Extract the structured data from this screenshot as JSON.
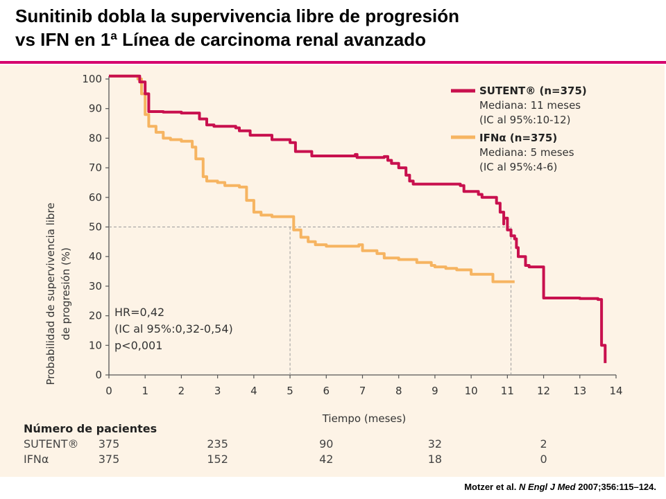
{
  "slide": {
    "title_line1": "Sunitinib dobla la supervivencia libre de progresión",
    "title_line2": "vs IFN en 1ª Línea de carcinoma renal avanzado",
    "accent_color": "#d6006e",
    "panel_color": "#fdf3e6"
  },
  "chart_data": {
    "type": "line",
    "xlabel": "Tiempo (meses)",
    "ylabel_line1": "Probabilidad de supervivencia libre",
    "ylabel_line2": "de progresión (%)",
    "xlim": [
      0,
      14
    ],
    "ylim": [
      0,
      100
    ],
    "x_ticks": [
      0,
      1,
      2,
      3,
      4,
      5,
      6,
      7,
      8,
      9,
      10,
      11,
      12,
      13,
      14
    ],
    "y_ticks": [
      0,
      10,
      20,
      30,
      40,
      50,
      60,
      70,
      80,
      90,
      100
    ],
    "grid": false,
    "median_guide": {
      "y": 50,
      "x_values": [
        5,
        11.1
      ]
    },
    "series": [
      {
        "name": "SUTENT® (n=375)",
        "color": "#c8104e",
        "median_text": "Mediana: 11 meses",
        "ci_text": "(IC al 95%:10-12)",
        "x": [
          0,
          0.8,
          0.85,
          1.0,
          1.1,
          1.5,
          2.0,
          2.5,
          2.7,
          2.9,
          3.5,
          3.6,
          3.9,
          4.5,
          5.0,
          5.15,
          5.4,
          5.6,
          6.0,
          6.8,
          6.85,
          7.1,
          7.6,
          7.7,
          7.8,
          8.0,
          8.2,
          8.3,
          8.4,
          9.5,
          9.7,
          9.8,
          10.2,
          10.3,
          10.4,
          10.6,
          10.7,
          10.8,
          10.9,
          10.9,
          11.0,
          11.1,
          11.2,
          11.25,
          11.3,
          11.5,
          11.6,
          11.7,
          12.0,
          13.0,
          13.5,
          13.6,
          13.7
        ],
        "y": [
          101,
          101,
          99,
          95,
          89,
          88.8,
          88.5,
          86.5,
          84.5,
          84,
          83.5,
          82.5,
          81,
          79.5,
          78.5,
          75.5,
          75.5,
          74,
          74,
          74.5,
          73.5,
          73.5,
          73.8,
          72.5,
          71.5,
          70,
          67.5,
          65.5,
          64.5,
          64.5,
          64,
          62,
          61,
          60,
          60,
          60,
          58,
          55,
          51,
          53,
          49,
          47,
          46,
          43,
          40,
          37,
          36.5,
          36.5,
          26,
          25.8,
          25.5,
          10,
          4
        ]
      },
      {
        "name": "IFNα (n=375)",
        "color": "#f6b461",
        "median_text": "Mediana: 5 meses",
        "ci_text": "(IC al 95%:4-6)",
        "x": [
          0,
          0.8,
          0.9,
          1.0,
          1.1,
          1.3,
          1.5,
          1.7,
          2.0,
          2.3,
          2.4,
          2.6,
          2.7,
          3.0,
          3.2,
          3.4,
          3.6,
          3.8,
          4.0,
          4.2,
          4.5,
          5.0,
          5.1,
          5.3,
          5.5,
          5.7,
          6.0,
          6.5,
          6.9,
          7.0,
          7.4,
          7.6,
          8.0,
          8.5,
          8.9,
          9.0,
          9.3,
          9.6,
          10.0,
          10.3,
          10.5,
          10.6,
          11.2
        ],
        "y": [
          101,
          100,
          95,
          88,
          84,
          82,
          80,
          79.5,
          79,
          77,
          73,
          67,
          65.5,
          65,
          64,
          64,
          63.5,
          59,
          55,
          54,
          53.5,
          53.5,
          49,
          46.5,
          45,
          44,
          43.5,
          43.5,
          44,
          42,
          41,
          39.5,
          39,
          38,
          37,
          36.5,
          36,
          35.5,
          34,
          34,
          34,
          31.5,
          31.5
        ]
      }
    ],
    "annotation": {
      "line1": "HR=0,42",
      "line2": "(IC al 95%:0,32-0,54)",
      "line3": "p<0,001"
    },
    "risk_table": {
      "header": "Número de pacientes",
      "times": [
        0,
        3,
        6,
        9,
        12
      ],
      "rows": [
        {
          "label": "SUTENT®",
          "values": [
            "375",
            "235",
            "90",
            "32",
            "2"
          ]
        },
        {
          "label": "IFNα",
          "values": [
            "375",
            "152",
            "42",
            "18",
            "0"
          ]
        }
      ]
    }
  },
  "citation": {
    "authors": "Motzer et al.",
    "journal": "N Engl J Med",
    "details": "2007;356:115–124."
  }
}
